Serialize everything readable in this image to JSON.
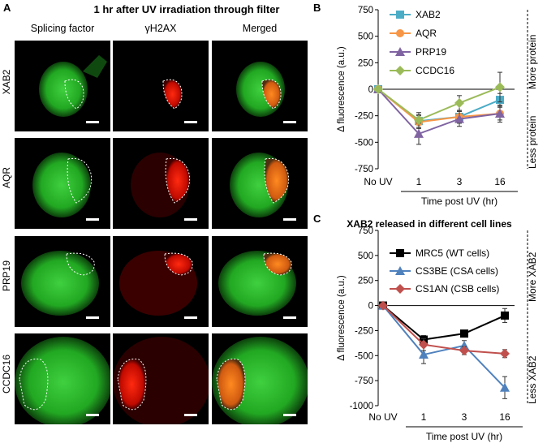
{
  "panel_a": {
    "letter": "A",
    "title": "1 hr after UV irradiation through filter",
    "columns": [
      "Splicing factor",
      "γH2AX",
      "Merged"
    ],
    "rows": [
      "XAB2",
      "AQR",
      "PRP19",
      "CCDC16"
    ]
  },
  "panel_b": {
    "letter": "B",
    "side_label_top": "More  protein",
    "side_label_bottom": "Less protein"
  },
  "panel_c": {
    "letter": "C",
    "side_label_top": "More  XAB2",
    "side_label_bottom": "Less XAB2"
  },
  "chart_data": [
    {
      "type": "line",
      "title": "",
      "categories": [
        "No UV",
        "1",
        "3",
        "16"
      ],
      "xlabel": "Time post UV (hr)",
      "ylabel": "Δ fluorescence (a.u.)",
      "ylim": [
        -750,
        750
      ],
      "yticks": [
        750,
        500,
        250,
        0,
        -250,
        -500,
        -750
      ],
      "legend": "top-right",
      "series": [
        {
          "name": "XAB2",
          "color": "#4bacc6",
          "marker": "square",
          "values": [
            0,
            -300,
            -260,
            -100
          ],
          "errors": [
            0,
            60,
            60,
            60
          ]
        },
        {
          "name": "AQR",
          "color": "#f79646",
          "marker": "circle",
          "values": [
            0,
            -310,
            -260,
            -230
          ],
          "errors": [
            0,
            60,
            60,
            60
          ]
        },
        {
          "name": "PRP19",
          "color": "#8064a2",
          "marker": "triangle",
          "values": [
            0,
            -420,
            -280,
            -230
          ],
          "errors": [
            0,
            100,
            70,
            80
          ]
        },
        {
          "name": "CCDC16",
          "color": "#9bbb59",
          "marker": "diamond",
          "values": [
            0,
            -290,
            -130,
            20
          ],
          "errors": [
            0,
            70,
            70,
            140
          ]
        }
      ]
    },
    {
      "type": "line",
      "title": "XAB2 released in different cell lines",
      "categories": [
        "No UV",
        "1",
        "3",
        "16"
      ],
      "xlabel": "Time post UV (hr)",
      "ylabel": "Δ fluorescence (a.u.)",
      "ylim": [
        -1000,
        750
      ],
      "yticks": [
        750,
        500,
        250,
        0,
        -250,
        -500,
        -750,
        -1000
      ],
      "legend": "top-right",
      "series": [
        {
          "name": "MRC5 (WT cells)",
          "color": "#000000",
          "marker": "square",
          "values": [
            0,
            -340,
            -280,
            -100
          ],
          "errors": [
            0,
            40,
            30,
            70
          ]
        },
        {
          "name": "CS3BE (CSA cells)",
          "color": "#4f81bd",
          "marker": "triangle",
          "values": [
            0,
            -490,
            -400,
            -820
          ],
          "errors": [
            0,
            90,
            50,
            110
          ]
        },
        {
          "name": "CS1AN (CSB cells)",
          "color": "#c0504d",
          "marker": "diamond",
          "values": [
            0,
            -390,
            -450,
            -480
          ],
          "errors": [
            0,
            60,
            40,
            40
          ]
        }
      ]
    }
  ]
}
